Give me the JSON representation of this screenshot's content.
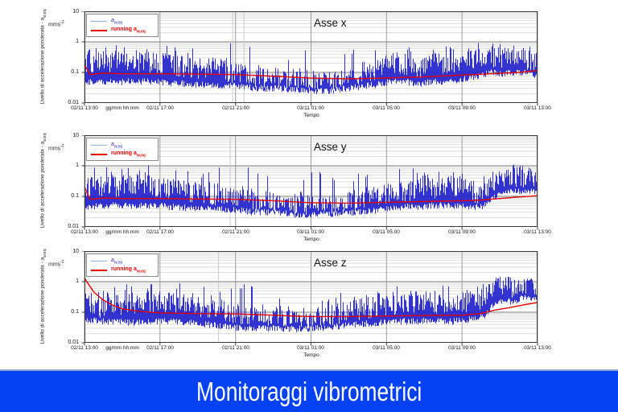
{
  "page": {
    "background": "#ffffff"
  },
  "banner": {
    "title": "Monitoraggi vibrometrici",
    "bg": "#0341f2",
    "text_color": "#ffffff"
  },
  "charts_common": {
    "ylabel_base": "Livello di accelerazione ponderata - a",
    "ylabel_sub": "w,eq",
    "unit_base": "mms",
    "unit_sup": "-2",
    "xlabel": "Tempo",
    "xformat_label": "gg/mm hh:mm",
    "ytick_labels": [
      "10",
      "1",
      "0.1",
      "0.01"
    ],
    "ytick_values": [
      10,
      1,
      0.1,
      0.01
    ],
    "xtick_labels": [
      "02/11 13:00",
      "02/11 17:00",
      "02/11 21:00",
      "03/11 01:00",
      "03/11 05:00",
      "03/11 09:00",
      "03/11 13:00"
    ],
    "xtick_hours": [
      0,
      4,
      8,
      12,
      16,
      20,
      24
    ],
    "legend": {
      "series1_base": "a",
      "series1_sub": "w,eq",
      "series2_base": "running a",
      "series2_sub": "w,eq"
    },
    "colors": {
      "series": "#2222cc",
      "series_legend_line": "#8fb3ea",
      "running": "#e60000",
      "grid_minor": "#dcdcdc",
      "grid_major": "#7d7d7d",
      "grid_vertical": "#9b9b9b",
      "event_line": "#c9c9c9",
      "border": "#3a3a3a"
    }
  },
  "chart_data": [
    {
      "type": "line",
      "title": "Asse x",
      "yscale": "log",
      "ylim": [
        0.01,
        10
      ],
      "x_hours": [
        0,
        24
      ],
      "event_lines": [
        7.85,
        8.45
      ],
      "series": [
        {
          "name": "aw,eq",
          "color": "#2222cc",
          "representation": "noise_band_t_lo_hi_spike",
          "band": [
            [
              0,
              0.05,
              0.3,
              0.5
            ],
            [
              0.5,
              0.05,
              0.33,
              0.75
            ],
            [
              1,
              0.05,
              0.35,
              1.25
            ],
            [
              1.5,
              0.05,
              0.3,
              0.65
            ],
            [
              2,
              0.05,
              0.3,
              0.75
            ],
            [
              2.5,
              0.05,
              0.32,
              0.6
            ],
            [
              3,
              0.05,
              0.33,
              0.7
            ],
            [
              3.5,
              0.05,
              0.3,
              0.85
            ],
            [
              4,
              0.05,
              0.28,
              0.6
            ],
            [
              4.5,
              0.045,
              0.26,
              0.85
            ],
            [
              5,
              0.045,
              0.24,
              0.55
            ],
            [
              5.5,
              0.04,
              0.22,
              0.5
            ],
            [
              6,
              0.04,
              0.2,
              0.55
            ],
            [
              6.8,
              0.04,
              0.22,
              1.15
            ],
            [
              7.5,
              0.035,
              0.15,
              0.6
            ],
            [
              8.3,
              0.035,
              0.13,
              1.3
            ],
            [
              9,
              0.03,
              0.1,
              0.5
            ],
            [
              10,
              0.03,
              0.09,
              0.35
            ],
            [
              11,
              0.028,
              0.08,
              0.3
            ],
            [
              12,
              0.025,
              0.075,
              0.55
            ],
            [
              13,
              0.025,
              0.07,
              0.3
            ],
            [
              14,
              0.03,
              0.09,
              0.4
            ],
            [
              14.8,
              0.035,
              0.15,
              0.9
            ],
            [
              15.5,
              0.04,
              0.2,
              0.65
            ],
            [
              16.3,
              0.05,
              0.28,
              0.9
            ],
            [
              17,
              0.05,
              0.25,
              0.7
            ],
            [
              17.7,
              0.04,
              0.18,
              0.45
            ],
            [
              18.5,
              0.05,
              0.3,
              0.85
            ],
            [
              19.3,
              0.05,
              0.25,
              0.6
            ],
            [
              20,
              0.06,
              0.3,
              0.7
            ],
            [
              20.8,
              0.07,
              0.4,
              0.95
            ],
            [
              21.5,
              0.1,
              0.5,
              1.0
            ],
            [
              22.2,
              0.09,
              0.45,
              0.8
            ],
            [
              23,
              0.1,
              0.4,
              0.85
            ],
            [
              23.6,
              0.09,
              0.35,
              0.7
            ],
            [
              24,
              0.08,
              0.3,
              0.5
            ]
          ]
        },
        {
          "name": "running aw,eq",
          "color": "#e60000",
          "representation": "points_t_value",
          "points": [
            [
              0,
              0.18
            ],
            [
              0.3,
              0.085
            ],
            [
              1,
              0.095
            ],
            [
              2,
              0.09
            ],
            [
              4,
              0.09
            ],
            [
              6,
              0.088
            ],
            [
              8,
              0.085
            ],
            [
              10,
              0.075
            ],
            [
              12,
              0.065
            ],
            [
              14,
              0.062
            ],
            [
              16,
              0.066
            ],
            [
              18,
              0.072
            ],
            [
              20,
              0.082
            ],
            [
              21.5,
              0.09
            ],
            [
              23,
              0.1
            ],
            [
              24,
              0.115
            ]
          ]
        }
      ]
    },
    {
      "type": "line",
      "title": "Asse y",
      "yscale": "log",
      "ylim": [
        0.01,
        10
      ],
      "x_hours": [
        0,
        24
      ],
      "event_lines": [
        7.72
      ],
      "series": [
        {
          "name": "aw,eq",
          "color": "#2222cc",
          "representation": "noise_band_t_lo_hi_spike",
          "band": [
            [
              0,
              0.045,
              0.28,
              0.5
            ],
            [
              0.5,
              0.045,
              0.3,
              0.7
            ],
            [
              1,
              0.05,
              0.32,
              0.85
            ],
            [
              1.5,
              0.05,
              0.3,
              0.6
            ],
            [
              2,
              0.05,
              0.3,
              0.7
            ],
            [
              2.5,
              0.05,
              0.33,
              0.65
            ],
            [
              3,
              0.05,
              0.35,
              0.7
            ],
            [
              3.5,
              0.05,
              0.32,
              0.95
            ],
            [
              4,
              0.05,
              0.3,
              0.65
            ],
            [
              4.5,
              0.045,
              0.28,
              0.95
            ],
            [
              5,
              0.045,
              0.25,
              0.6
            ],
            [
              5.5,
              0.04,
              0.22,
              0.75
            ],
            [
              6,
              0.04,
              0.2,
              0.6
            ],
            [
              6.5,
              0.04,
              0.18,
              0.55
            ],
            [
              7,
              0.04,
              0.16,
              0.7
            ],
            [
              7.7,
              0.035,
              0.13,
              0.85
            ],
            [
              8.3,
              0.035,
              0.12,
              0.6
            ],
            [
              8.8,
              0.03,
              0.1,
              1.1
            ],
            [
              9.5,
              0.03,
              0.09,
              0.45
            ],
            [
              10.5,
              0.028,
              0.08,
              0.35
            ],
            [
              11.5,
              0.025,
              0.075,
              0.3
            ],
            [
              12.5,
              0.025,
              0.07,
              0.65
            ],
            [
              13.5,
              0.028,
              0.08,
              0.35
            ],
            [
              14.5,
              0.03,
              0.1,
              0.45
            ],
            [
              15.5,
              0.035,
              0.14,
              0.6
            ],
            [
              16.2,
              0.04,
              0.18,
              0.45
            ],
            [
              16.8,
              0.045,
              0.2,
              0.9
            ],
            [
              17.8,
              0.045,
              0.25,
              0.7
            ],
            [
              18.5,
              0.05,
              0.28,
              0.6
            ],
            [
              19.2,
              0.05,
              0.3,
              0.65
            ],
            [
              20,
              0.05,
              0.32,
              0.7
            ],
            [
              20.6,
              0.045,
              0.2,
              0.5
            ],
            [
              21.2,
              0.05,
              0.18,
              0.45
            ],
            [
              21.8,
              0.1,
              0.55,
              0.9
            ],
            [
              22.4,
              0.15,
              0.7,
              1.15
            ],
            [
              23,
              0.15,
              0.65,
              1.0
            ],
            [
              23.5,
              0.15,
              0.6,
              0.9
            ],
            [
              24,
              0.15,
              0.55,
              0.85
            ]
          ]
        },
        {
          "name": "running aw,eq",
          "color": "#e60000",
          "representation": "points_t_value",
          "points": [
            [
              0,
              0.2
            ],
            [
              0.3,
              0.08
            ],
            [
              1,
              0.088
            ],
            [
              2,
              0.085
            ],
            [
              4,
              0.085
            ],
            [
              6,
              0.082
            ],
            [
              8,
              0.08
            ],
            [
              10,
              0.072
            ],
            [
              12,
              0.062
            ],
            [
              14,
              0.06
            ],
            [
              16,
              0.064
            ],
            [
              18,
              0.068
            ],
            [
              20,
              0.072
            ],
            [
              21,
              0.075
            ],
            [
              22,
              0.085
            ],
            [
              23,
              0.095
            ],
            [
              24,
              0.105
            ]
          ]
        }
      ]
    },
    {
      "type": "line",
      "title": "Asse z",
      "yscale": "log",
      "ylim": [
        0.01,
        10
      ],
      "x_hours": [
        0,
        24
      ],
      "event_lines": [
        7.1
      ],
      "series": [
        {
          "name": "aw,eq",
          "color": "#2222cc",
          "representation": "noise_band_t_lo_hi_spike",
          "band": [
            [
              0,
              0.06,
              0.5,
              1.4
            ],
            [
              0.3,
              0.055,
              0.3,
              0.7
            ],
            [
              0.8,
              0.05,
              0.22,
              0.45
            ],
            [
              1.5,
              0.05,
              0.24,
              0.55
            ],
            [
              2.5,
              0.045,
              0.3,
              0.8
            ],
            [
              3.3,
              0.05,
              0.33,
              0.85
            ],
            [
              4,
              0.05,
              0.3,
              0.75
            ],
            [
              4.75,
              0.05,
              0.3,
              1.35
            ],
            [
              5.5,
              0.045,
              0.25,
              0.8
            ],
            [
              6.5,
              0.04,
              0.2,
              0.6
            ],
            [
              7.5,
              0.035,
              0.12,
              0.45
            ],
            [
              8.5,
              0.03,
              0.1,
              0.65
            ],
            [
              9.5,
              0.03,
              0.09,
              0.4
            ],
            [
              10.5,
              0.028,
              0.08,
              0.3
            ],
            [
              11.5,
              0.028,
              0.08,
              0.35
            ],
            [
              12.5,
              0.03,
              0.1,
              0.3
            ],
            [
              13.5,
              0.035,
              0.14,
              0.4
            ],
            [
              14.5,
              0.04,
              0.18,
              0.45
            ],
            [
              15.5,
              0.045,
              0.22,
              0.5
            ],
            [
              16.5,
              0.05,
              0.25,
              0.55
            ],
            [
              17.5,
              0.05,
              0.28,
              0.6
            ],
            [
              18.5,
              0.055,
              0.3,
              0.65
            ],
            [
              19.5,
              0.05,
              0.28,
              0.7
            ],
            [
              20.5,
              0.06,
              0.3,
              0.6
            ],
            [
              21.3,
              0.08,
              0.5,
              0.9
            ],
            [
              21.8,
              0.2,
              1.0,
              1.5
            ],
            [
              22.3,
              0.25,
              1.1,
              1.4
            ],
            [
              22.8,
              0.2,
              0.8,
              1.2
            ],
            [
              23.2,
              0.3,
              1.0,
              1.3
            ],
            [
              23.7,
              0.3,
              0.9,
              1.2
            ],
            [
              24,
              0.3,
              0.9,
              1.1
            ]
          ]
        },
        {
          "name": "running aw,eq",
          "color": "#e60000",
          "representation": "points_t_value",
          "points": [
            [
              0,
              1.3
            ],
            [
              0.5,
              0.45
            ],
            [
              1,
              0.25
            ],
            [
              1.5,
              0.17
            ],
            [
              2,
              0.13
            ],
            [
              3,
              0.105
            ],
            [
              4,
              0.095
            ],
            [
              6,
              0.09
            ],
            [
              8,
              0.088
            ],
            [
              10,
              0.08
            ],
            [
              11,
              0.075
            ],
            [
              12,
              0.072
            ],
            [
              14,
              0.072
            ],
            [
              16,
              0.075
            ],
            [
              18,
              0.078
            ],
            [
              20,
              0.08
            ],
            [
              21,
              0.09
            ],
            [
              21.8,
              0.12
            ],
            [
              22.5,
              0.14
            ],
            [
              23.2,
              0.17
            ],
            [
              24,
              0.21
            ]
          ]
        }
      ]
    }
  ]
}
